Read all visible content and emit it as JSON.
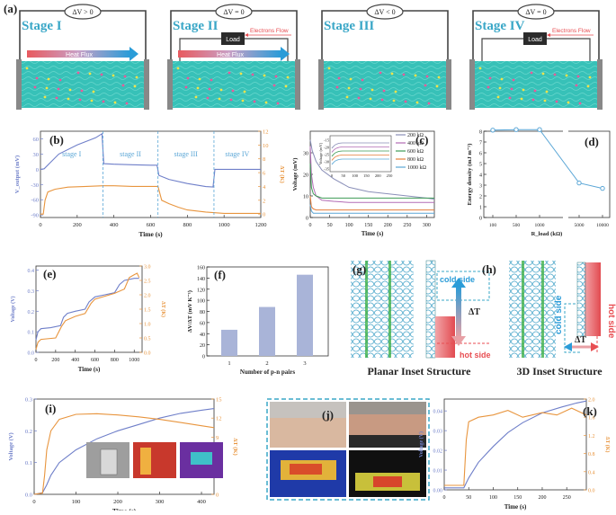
{
  "figure_label": "(a)",
  "colors": {
    "blue": "#6f7fc9",
    "orange": "#e8953e",
    "cyan": "#3aa7c7",
    "electrolyte": "#37c1b8",
    "hot": "#e84e52"
  },
  "stages": [
    {
      "label": "Stage I",
      "meter": "ΔV > 0",
      "load": "",
      "heat_flux": "Heat Flux",
      "electrons": ""
    },
    {
      "label": "Stage II",
      "meter": "ΔV = 0",
      "load": "Load",
      "heat_flux": "Heat Flux",
      "electrons": "Electrons Flow"
    },
    {
      "label": "Stage III",
      "meter": "ΔV < 0",
      "load": "",
      "heat_flux": "",
      "electrons": ""
    },
    {
      "label": "Stage IV",
      "meter": "ΔV = 0",
      "load": "Load",
      "heat_flux": "",
      "electrons": "Electrons Flow"
    }
  ],
  "panel_labels": {
    "b": "(b)",
    "c": "(c)",
    "d": "(d)",
    "e": "(e)",
    "f": "(f)",
    "g": "(g)",
    "h": "(h)",
    "i": "(i)",
    "j": "(j)",
    "k": "(k)"
  },
  "inset_g": {
    "cold": "cold side",
    "hot": "hot side",
    "delta": "ΔT",
    "caption": "Planar Inset Structure"
  },
  "inset_h": {
    "cold": "cold side",
    "hot": "hot side",
    "delta": "ΔT",
    "caption": "3D Inset Structure"
  },
  "chart_data": [
    {
      "id": "b",
      "type": "line",
      "xlabel": "Time (s)",
      "ylabel": "V_output (mV)",
      "y2label": "ΔT (K)",
      "xticks": [
        "0",
        "200",
        "400",
        "600",
        "800",
        "1000",
        "1200"
      ],
      "yticks": [
        "-90",
        "-60",
        "-30",
        "0",
        "30",
        "60"
      ],
      "y2ticks": [
        "0",
        "2",
        "4",
        "6",
        "8",
        "10",
        "12"
      ],
      "xlim": [
        0,
        1200
      ],
      "ylim": [
        -95,
        75
      ],
      "y2lim": [
        -0.5,
        12
      ],
      "stage_labels": [
        "stage I",
        "stage II",
        "stage III",
        "stage IV"
      ],
      "stage_boundaries": [
        340,
        640,
        945
      ],
      "series": [
        {
          "name": "Voltage",
          "axis": "left",
          "x": [
            0,
            20,
            50,
            100,
            200,
            300,
            335,
            345,
            400,
            500,
            600,
            635,
            645,
            700,
            800,
            900,
            940,
            950,
            1000,
            1100,
            1200
          ],
          "y": [
            0,
            1,
            12,
            30,
            48,
            62,
            70,
            11,
            10,
            9,
            8,
            8,
            -12,
            -20,
            -28,
            -34,
            -35,
            0,
            0,
            0,
            0
          ]
        },
        {
          "name": "ΔT",
          "axis": "right",
          "x": [
            0,
            15,
            25,
            40,
            80,
            150,
            250,
            340,
            400,
            500,
            600,
            640,
            660,
            700,
            750,
            800,
            900,
            1000,
            1200
          ],
          "y": [
            0,
            0,
            2,
            3.2,
            3.6,
            3.9,
            4.0,
            4.1,
            4.1,
            4.0,
            4.0,
            4.0,
            2.0,
            1.5,
            1.0,
            0.6,
            0.3,
            0.1,
            0.1
          ]
        }
      ]
    },
    {
      "id": "c",
      "type": "line",
      "xlabel": "Time (s)",
      "ylabel": "Voltage (mV)",
      "xticks": [
        "0",
        "50",
        "100",
        "150",
        "200",
        "250",
        "300"
      ],
      "yticks": [
        "0",
        "10",
        "20",
        "30"
      ],
      "xlim": [
        0,
        320
      ],
      "ylim": [
        0,
        40
      ],
      "legend": [
        "200 kΩ",
        "400 kΩ",
        "600 kΩ",
        "800 kΩ",
        "1000 kΩ"
      ],
      "inset": {
        "ylabel": "Voltage (mV)",
        "xticks": [
          "0",
          "50",
          "100",
          "150",
          "200",
          "250"
        ],
        "yticks": [
          "-15",
          "-20",
          "-25",
          "-30",
          "-35"
        ]
      },
      "series": [
        {
          "name": "200 kΩ",
          "color": "#8a8fb8",
          "x": [
            0,
            5,
            15,
            30,
            60,
            100,
            150,
            200,
            250,
            300,
            320
          ],
          "y": [
            36,
            31,
            26,
            22,
            18,
            14,
            12,
            11,
            10,
            9,
            8.5
          ]
        },
        {
          "name": "400 kΩ",
          "color": "#b26bb5",
          "x": [
            0,
            3,
            8,
            15,
            30,
            60,
            100,
            150,
            200,
            320
          ],
          "y": [
            33,
            20,
            14,
            10,
            8,
            7.5,
            7,
            7,
            7,
            7
          ]
        },
        {
          "name": "600 kΩ",
          "color": "#3e9b56",
          "x": [
            0,
            3,
            8,
            15,
            30,
            60,
            100,
            200,
            320
          ],
          "y": [
            25,
            14,
            11,
            10,
            9,
            9,
            9,
            9,
            9
          ]
        },
        {
          "name": "800 kΩ",
          "color": "#e57e3a",
          "x": [
            0,
            3,
            8,
            15,
            30,
            100,
            200,
            320
          ],
          "y": [
            10,
            5,
            4,
            3.5,
            3.5,
            3.5,
            3.5,
            3.5
          ]
        },
        {
          "name": "1000 kΩ",
          "color": "#5aa6d6",
          "x": [
            0,
            3,
            8,
            20,
            100,
            320
          ],
          "y": [
            6,
            3,
            2,
            2,
            2,
            2
          ]
        }
      ]
    },
    {
      "id": "d",
      "type": "line",
      "xlabel": "R_load (kΩ)",
      "ylabel": "Energy density (mJ m⁻²)",
      "categories": [
        "100",
        "500",
        "1000",
        "5000",
        "10000"
      ],
      "yticks": [
        "0",
        "1",
        "2",
        "3",
        "4",
        "5",
        "6",
        "7",
        "8"
      ],
      "ylim": [
        0,
        8
      ],
      "values": [
        8.1,
        8.15,
        8.15,
        3.2,
        2.7
      ]
    },
    {
      "id": "e",
      "type": "line",
      "xlabel": "Time (s)",
      "ylabel": "Voltage (V)",
      "y2label": "ΔT (K)",
      "xticks": [
        "0",
        "200",
        "400",
        "600",
        "800",
        "1000"
      ],
      "yticks": [
        "0.0",
        "0.1",
        "0.2",
        "0.3",
        "0.4"
      ],
      "y2ticks": [
        "0.0",
        "0.5",
        "1.0",
        "1.5",
        "2.0",
        "2.5",
        "3.0"
      ],
      "xlim": [
        0,
        1080
      ],
      "ylim": [
        0,
        0.42
      ],
      "y2lim": [
        0,
        3.0
      ],
      "series": [
        {
          "name": "Voltage",
          "axis": "left",
          "x": [
            0,
            20,
            50,
            150,
            250,
            280,
            320,
            400,
            500,
            540,
            600,
            700,
            800,
            850,
            900,
            1000,
            1050
          ],
          "y": [
            0.06,
            0.1,
            0.115,
            0.12,
            0.13,
            0.17,
            0.19,
            0.2,
            0.21,
            0.245,
            0.27,
            0.28,
            0.29,
            0.33,
            0.35,
            0.36,
            0.36
          ]
        },
        {
          "name": "ΔT",
          "axis": "right",
          "x": [
            0,
            20,
            50,
            200,
            260,
            300,
            400,
            500,
            560,
            600,
            700,
            800,
            900,
            950,
            1000,
            1030,
            1050
          ],
          "y": [
            0.1,
            0.35,
            0.45,
            0.5,
            0.9,
            1.1,
            1.25,
            1.35,
            1.7,
            1.85,
            1.95,
            2.05,
            2.2,
            2.6,
            2.7,
            2.75,
            2.6
          ]
        }
      ]
    },
    {
      "id": "f",
      "type": "bar",
      "xlabel": "Number of p-n pairs",
      "ylabel": "ΔV/ΔT (mV K⁻¹)",
      "categories": [
        "1",
        "2",
        "3"
      ],
      "yticks": [
        "0",
        "20",
        "40",
        "60",
        "80",
        "100",
        "120",
        "140",
        "160"
      ],
      "ylim": [
        0,
        160
      ],
      "values": [
        47,
        88,
        146
      ]
    },
    {
      "id": "i",
      "type": "line",
      "xlabel": "Time (s)",
      "ylabel": "Voltage (V)",
      "y2label": "ΔT (K)",
      "xticks": [
        "0",
        "100",
        "200",
        "300",
        "400"
      ],
      "yticks": [
        "0.0",
        "0.1",
        "0.2",
        "0.3"
      ],
      "y2ticks": [
        "0",
        "3",
        "6",
        "9",
        "12",
        "15"
      ],
      "xlim": [
        0,
        430
      ],
      "ylim": [
        0,
        0.3
      ],
      "y2lim": [
        0,
        15
      ],
      "series": [
        {
          "name": "Voltage",
          "axis": "left",
          "x": [
            0,
            20,
            30,
            40,
            60,
            100,
            150,
            200,
            250,
            300,
            350,
            400,
            430
          ],
          "y": [
            0,
            0.005,
            0.03,
            0.06,
            0.1,
            0.14,
            0.175,
            0.2,
            0.22,
            0.24,
            0.255,
            0.265,
            0.27
          ]
        },
        {
          "name": "ΔT",
          "axis": "right",
          "x": [
            0,
            20,
            25,
            30,
            40,
            60,
            100,
            150,
            200,
            250,
            300,
            350,
            400,
            430
          ],
          "y": [
            0,
            0.2,
            3,
            7,
            10,
            11.8,
            12.6,
            12.7,
            12.5,
            12.2,
            11.8,
            11.3,
            10.8,
            10.5
          ]
        }
      ]
    },
    {
      "id": "k",
      "type": "line",
      "xlabel": "Time (s)",
      "ylabel": "Voltage (V)",
      "y2label": "ΔT (K)",
      "xticks": [
        "0",
        "50",
        "100",
        "150",
        "200",
        "250"
      ],
      "yticks": [
        "0.00",
        "0.01",
        "0.02",
        "0.03",
        "0.04"
      ],
      "y2ticks": [
        "0.0",
        "0.4",
        "0.8",
        "1.2",
        "1.6",
        "2.0"
      ],
      "xlim": [
        0,
        290
      ],
      "ylim": [
        0,
        0.046
      ],
      "y2lim": [
        0,
        2.0
      ],
      "series": [
        {
          "name": "Voltage",
          "axis": "left",
          "x": [
            0,
            40,
            50,
            70,
            100,
            130,
            160,
            200,
            240,
            270,
            290
          ],
          "y": [
            0.001,
            0.001,
            0.006,
            0.014,
            0.022,
            0.029,
            0.034,
            0.039,
            0.042,
            0.044,
            0.045
          ]
        },
        {
          "name": "ΔT",
          "axis": "right",
          "x": [
            0,
            40,
            45,
            50,
            70,
            100,
            130,
            160,
            200,
            230,
            260,
            290
          ],
          "y": [
            0.1,
            0.1,
            1.1,
            1.5,
            1.6,
            1.65,
            1.75,
            1.6,
            1.7,
            1.65,
            1.8,
            1.65
          ]
        }
      ]
    }
  ]
}
